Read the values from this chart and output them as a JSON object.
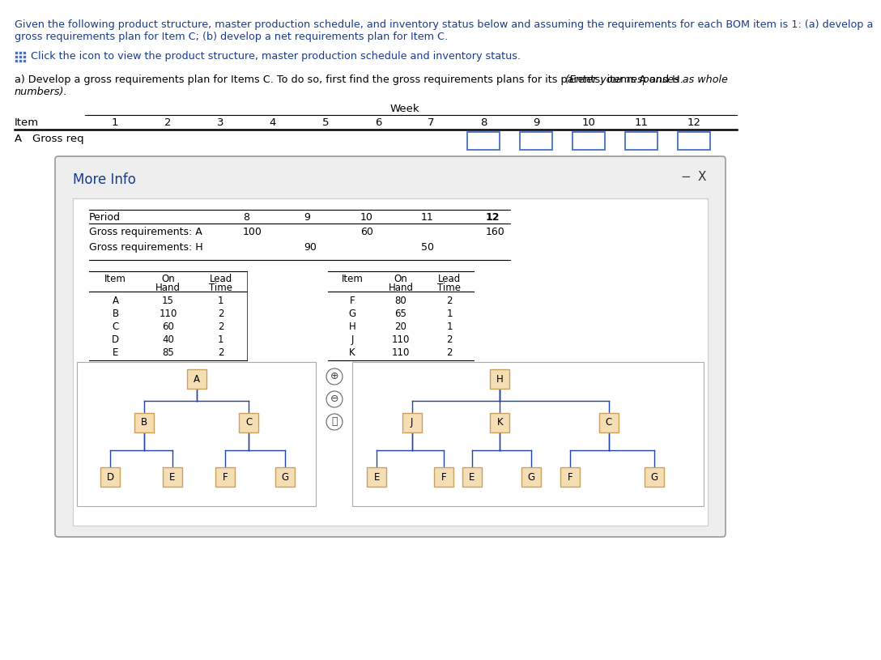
{
  "title_text": "Given the following product structure, master production schedule, and inventory status below and assuming the requirements for each BOM item is 1: (a) develop a\ngross requirements plan for Item C; (b) develop a net requirements plan for Item C.",
  "icon_text": "Click the icon to view the product structure, master production schedule and inventory status.",
  "part_a_text_normal": "a) Develop a gross requirements plan for Items C. To do so, first find the gross requirements plans for its parents: items A and H. ",
  "part_a_text_italic": "(Enter your responses as whole\nnumbers).",
  "week_label": "Week",
  "item_col": "Item",
  "periods": [
    "1",
    "2",
    "3",
    "4",
    "5",
    "6",
    "7",
    "8",
    "9",
    "10",
    "11",
    "12"
  ],
  "row_item": "A",
  "row_label": "Gross req",
  "input_boxes_at": [
    7,
    8,
    9,
    10,
    11
  ],
  "modal_title": "More Info",
  "modal_minus": "−",
  "modal_x": "X",
  "schedule_headers": [
    "Period",
    "8",
    "9",
    "10",
    "11",
    "12"
  ],
  "schedule_col_offsets": [
    0,
    190,
    265,
    335,
    410,
    490
  ],
  "schedule_rows": [
    [
      "Gross requirements: A",
      "100",
      "",
      "60",
      "",
      "160"
    ],
    [
      "Gross requirements: H",
      "",
      "90",
      "",
      "50",
      ""
    ]
  ],
  "inv_left_headers": [
    "Item",
    "On\nHand",
    "Lead\nTime"
  ],
  "inv_left_rows": [
    [
      "A",
      "15",
      "1"
    ],
    [
      "B",
      "110",
      "2"
    ],
    [
      "C",
      "60",
      "2"
    ],
    [
      "D",
      "40",
      "1"
    ],
    [
      "E",
      "85",
      "2"
    ]
  ],
  "inv_right_headers": [
    "Item",
    "On\nHand",
    "Lead\nTime"
  ],
  "inv_right_rows": [
    [
      "F",
      "80",
      "2"
    ],
    [
      "G",
      "65",
      "1"
    ],
    [
      "H",
      "20",
      "1"
    ],
    [
      "J",
      "110",
      "2"
    ],
    [
      "K",
      "110",
      "2"
    ]
  ],
  "node_color": "#f5deb3",
  "node_border": "#c8a060",
  "edge_color": "#2244aa",
  "box_outline": "#4472c4",
  "text_color_blue": "#1a3c8c",
  "text_color_black": "#000000",
  "icon_color": "#4472c4"
}
